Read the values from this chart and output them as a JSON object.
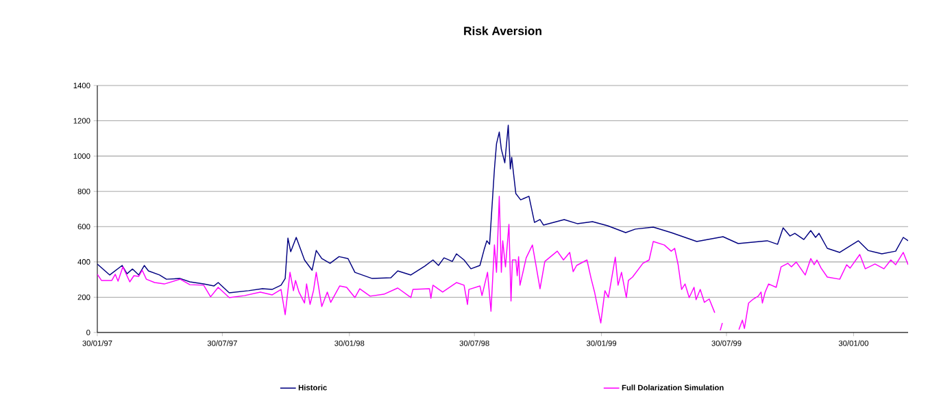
{
  "chart_data": {
    "type": "line",
    "title": "Risk Aversion",
    "xlim": [
      "1997-01-30",
      "2000-04-18"
    ],
    "ylim": [
      0,
      1400
    ],
    "xticks": [
      {
        "value": "1997-01-30",
        "label": "30/01/97"
      },
      {
        "value": "1997-07-30",
        "label": "30/07/97"
      },
      {
        "value": "1998-01-30",
        "label": "30/01/98"
      },
      {
        "value": "1998-07-30",
        "label": "30/07/98"
      },
      {
        "value": "1999-01-30",
        "label": "30/01/99"
      },
      {
        "value": "1999-07-30",
        "label": "30/07/99"
      },
      {
        "value": "2000-01-30",
        "label": "30/01/00"
      }
    ],
    "yticks": [
      0,
      200,
      400,
      600,
      800,
      1000,
      1200,
      1400
    ],
    "grid": "y",
    "legend": "bottom",
    "series": [
      {
        "name": "Historic",
        "color": "#000080",
        "x": [
          "1997-01-30",
          "1997-02-17",
          "1997-03-07",
          "1997-03-14",
          "1997-03-22",
          "1997-03-31",
          "1997-04-08",
          "1997-04-14",
          "1997-04-30",
          "1997-05-10",
          "1997-05-30",
          "1997-06-13",
          "1997-07-03",
          "1997-07-18",
          "1997-07-24",
          "1997-08-09",
          "1997-09-06",
          "1997-09-26",
          "1997-10-10",
          "1997-10-23",
          "1997-10-29",
          "1997-11-02",
          "1997-11-06",
          "1997-11-14",
          "1997-11-26",
          "1997-12-07",
          "1997-12-13",
          "1997-12-21",
          "1998-01-02",
          "1998-01-15",
          "1998-01-28",
          "1998-02-07",
          "1998-03-04",
          "1998-03-31",
          "1998-04-10",
          "1998-04-29",
          "1998-05-19",
          "1998-05-31",
          "1998-06-08",
          "1998-06-16",
          "1998-06-28",
          "1998-07-04",
          "1998-07-15",
          "1998-07-25",
          "1998-08-07",
          "1998-08-13",
          "1998-08-17",
          "1998-08-21",
          "1998-08-28",
          "1998-08-31",
          "1998-09-04",
          "1998-09-07",
          "1998-09-12",
          "1998-09-17",
          "1998-09-20",
          "1998-09-22",
          "1998-09-28",
          "1998-10-05",
          "1998-10-17",
          "1998-10-25",
          "1998-11-02",
          "1998-11-07",
          "1998-12-07",
          "1998-12-26",
          "1999-01-17",
          "1999-02-08",
          "1999-03-06",
          "1999-03-20",
          "1999-04-15",
          "1999-05-11",
          "1999-06-17",
          "1999-07-25",
          "1999-08-16",
          "1999-09-27",
          "1999-10-12",
          "1999-10-20",
          "1999-10-30",
          "1999-11-06",
          "1999-11-19",
          "1999-11-29",
          "1999-12-06",
          "1999-12-11",
          "1999-12-23",
          "2000-01-10",
          "2000-02-06",
          "2000-02-20",
          "2000-03-11",
          "2000-03-31",
          "2000-04-11",
          "2000-04-18"
        ],
        "values": [
          388,
          326,
          380,
          333,
          360,
          326,
          380,
          349,
          326,
          302,
          306,
          287,
          275,
          264,
          283,
          225,
          237,
          248,
          244,
          268,
          306,
          535,
          458,
          539,
          411,
          353,
          465,
          419,
          392,
          430,
          419,
          341,
          306,
          310,
          349,
          326,
          376,
          411,
          380,
          423,
          403,
          446,
          411,
          361,
          380,
          469,
          520,
          500,
          927,
          1070,
          1136,
          1039,
          962,
          1175,
          927,
          993,
          787,
          752,
          772,
          624,
          640,
          609,
          640,
          617,
          628,
          605,
          566,
          586,
          597,
          566,
          516,
          543,
          504,
          520,
          500,
          593,
          547,
          562,
          527,
          578,
          539,
          562,
          477,
          454,
          520,
          465,
          446,
          461,
          539,
          520
        ]
      },
      {
        "name": "Full Dolarization Simulation",
        "color": "#ff00ff",
        "x": [
          "1997-01-30",
          "1997-02-05",
          "1997-02-20",
          "1997-02-25",
          "1997-03-01",
          "1997-03-08",
          "1997-03-18",
          "1997-03-24",
          "1997-03-31",
          "1997-04-05",
          "1997-04-11",
          "1997-04-23",
          "1997-05-07",
          "1997-05-30",
          "1997-06-13",
          "1997-07-03",
          "1997-07-13",
          "1997-07-24",
          "1997-08-09",
          "1997-08-31",
          "1997-09-23",
          "1997-10-10",
          "1997-10-23",
          "1997-10-29",
          "1997-11-05",
          "1997-11-10",
          "1997-11-13",
          "1997-11-18",
          "1997-11-26",
          "1997-11-29",
          "1997-12-04",
          "1997-12-09",
          "1997-12-13",
          "1997-12-21",
          "1997-12-29",
          "1998-01-03",
          "1998-01-16",
          "1998-01-26",
          "1998-02-07",
          "1998-02-14",
          "1998-03-01",
          "1998-03-21",
          "1998-04-10",
          "1998-04-29",
          "1998-05-02",
          "1998-05-26",
          "1998-05-28",
          "1998-05-31",
          "1998-06-14",
          "1998-07-04",
          "1998-07-15",
          "1998-07-20",
          "1998-07-22",
          "1998-08-07",
          "1998-08-10",
          "1998-08-18",
          "1998-08-23",
          "1998-08-28",
          "1998-08-31",
          "1998-09-04",
          "1998-09-07",
          "1998-09-09",
          "1998-09-13",
          "1998-09-18",
          "1998-09-21",
          "1998-09-23",
          "1998-09-28",
          "1998-09-30",
          "1998-10-02",
          "1998-10-04",
          "1998-10-13",
          "1998-10-22",
          "1998-10-27",
          "1998-11-02",
          "1998-11-09",
          "1998-11-27",
          "1998-12-06",
          "1998-12-15",
          "1998-12-20",
          "1998-12-25",
          "1999-01-09",
          "1999-01-15",
          "1999-01-20",
          "1999-01-29",
          "1999-02-04",
          "1999-02-09",
          "1999-02-19",
          "1999-02-23",
          "1999-02-28",
          "1999-03-07",
          "1999-03-10",
          "1999-03-16",
          "1999-03-31",
          "1999-04-09",
          "1999-04-15",
          "1999-05-01",
          "1999-05-11",
          "1999-05-16",
          "1999-05-21",
          "1999-05-26",
          "1999-05-31",
          "1999-06-06",
          "1999-06-13",
          "1999-06-16",
          "1999-06-22",
          "1999-06-28",
          "1999-07-05",
          "1999-07-13",
          "1999-07-17",
          "1999-07-21",
          "1999-07-24",
          "1999-08-05",
          "1999-08-17",
          "1999-08-22",
          "1999-08-25",
          "1999-08-31",
          "1999-09-07",
          "1999-09-14",
          "1999-09-18",
          "1999-09-20",
          "1999-09-24",
          "1999-09-29",
          "1999-10-10",
          "1999-10-17",
          "1999-10-27",
          "1999-11-01",
          "1999-11-08",
          "1999-11-21",
          "1999-11-29",
          "1999-12-04",
          "1999-12-08",
          "1999-12-14",
          "1999-12-23",
          "2000-01-10",
          "2000-01-20",
          "2000-01-25",
          "2000-02-08",
          "2000-02-16",
          "2000-03-01",
          "2000-03-14",
          "2000-03-24",
          "2000-03-31",
          "2000-04-11",
          "2000-04-18"
        ],
        "values": [
          330,
          295,
          295,
          330,
          291,
          372,
          287,
          322,
          318,
          353,
          302,
          283,
          275,
          302,
          271,
          268,
          202,
          256,
          198,
          209,
          229,
          213,
          244,
          101,
          341,
          237,
          295,
          229,
          167,
          275,
          159,
          237,
          341,
          147,
          229,
          171,
          264,
          256,
          198,
          248,
          206,
          217,
          252,
          198,
          244,
          248,
          194,
          268,
          229,
          283,
          268,
          159,
          244,
          264,
          209,
          341,
          120,
          496,
          341,
          772,
          341,
          520,
          372,
          613,
          178,
          411,
          411,
          322,
          430,
          268,
          423,
          496,
          384,
          248,
          403,
          461,
          411,
          454,
          345,
          380,
          411,
          306,
          229,
          54,
          237,
          198,
          427,
          268,
          341,
          198,
          295,
          314,
          392,
          411,
          516,
          496,
          461,
          477,
          384,
          244,
          275,
          198,
          256,
          186,
          244,
          171,
          190,
          112,
          null,
          12,
          54,
          null,
          16,
          70,
          23,
          167,
          190,
          206,
          229,
          167,
          229,
          275,
          256,
          372,
          392,
          372,
          399,
          326,
          419,
          384,
          411,
          365,
          314,
          302,
          384,
          365,
          442,
          361,
          388,
          361,
          411,
          384,
          454,
          384
        ]
      }
    ]
  }
}
